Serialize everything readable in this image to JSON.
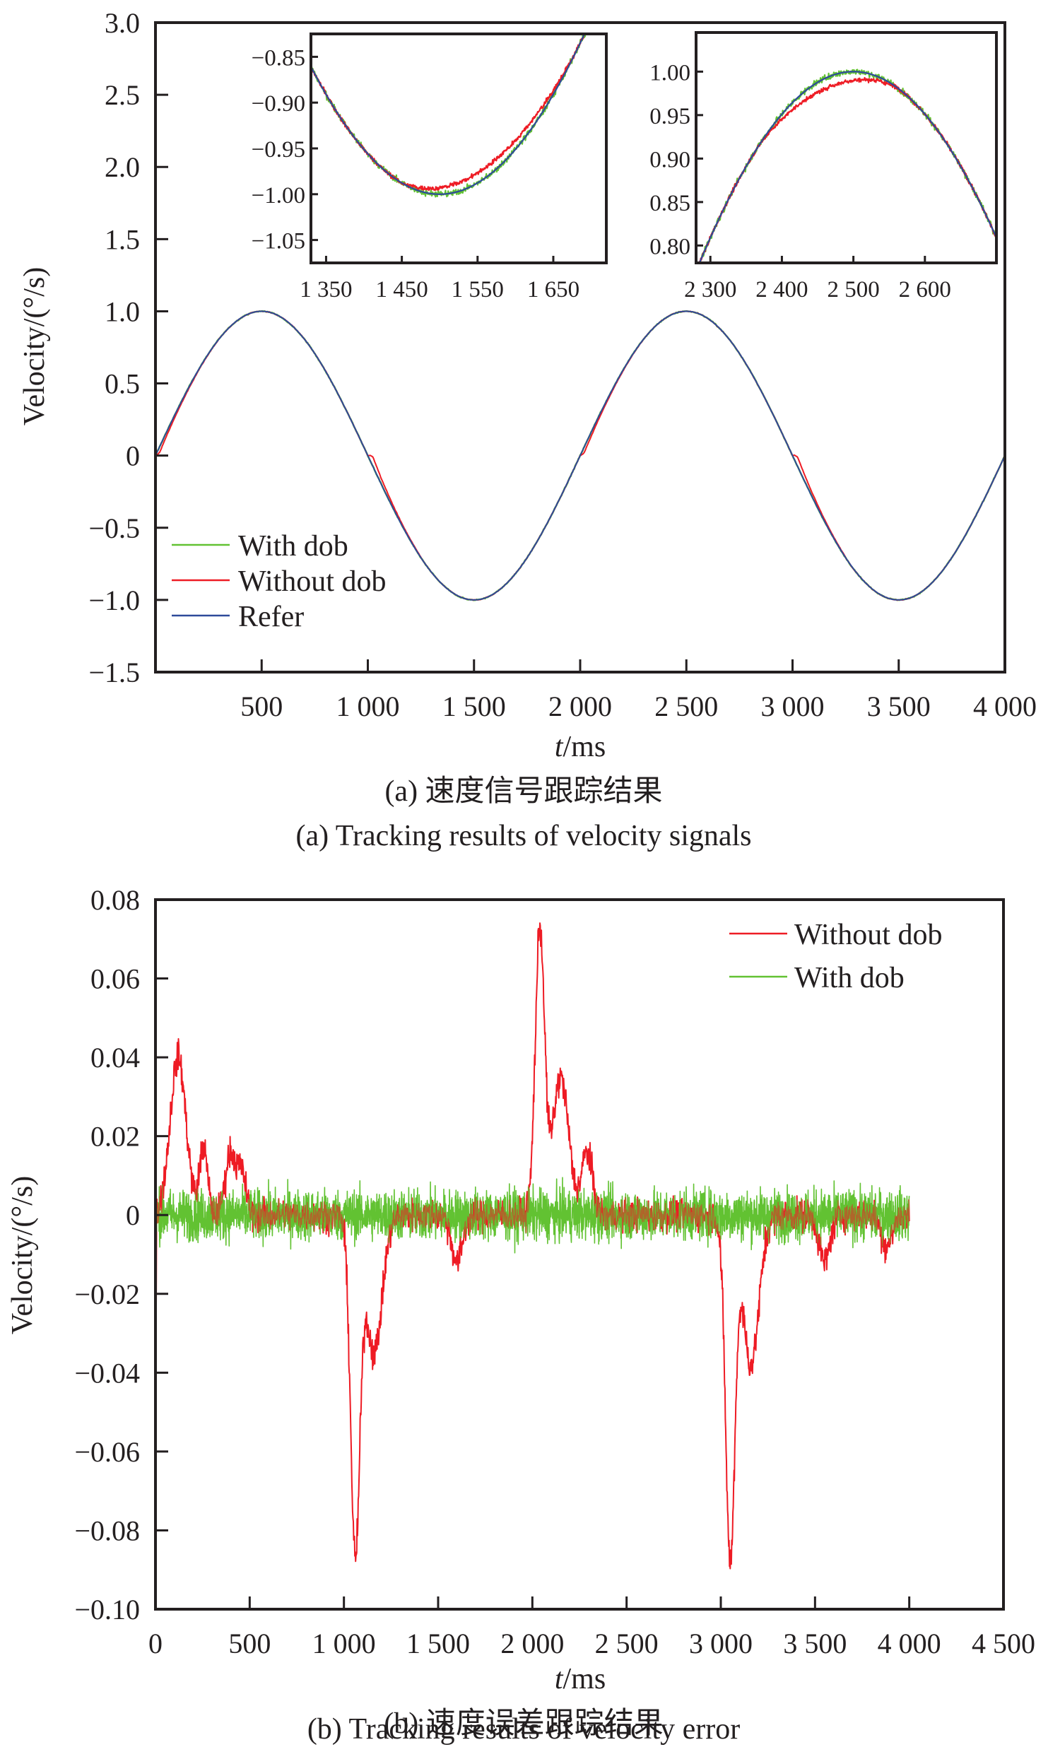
{
  "colors": {
    "with_dob": "#62c232",
    "without_dob": "#ee1c25",
    "refer": "#2e4a9a",
    "axis": "#231f20"
  },
  "chart_data": [
    {
      "id": "a",
      "type": "line",
      "title": "",
      "xlabel_italic": "t",
      "xlabel_rest": "/ms",
      "ylabel": "Velocity/(°/s)",
      "xlim": [
        0,
        4000
      ],
      "ylim": [
        -1.5,
        3.0
      ],
      "grid": false,
      "x_ticks": [
        500,
        1000,
        1500,
        2000,
        2500,
        3000,
        3500,
        4000
      ],
      "x_tick_labels": [
        "500",
        "1 000",
        "1 500",
        "2 000",
        "2 500",
        "3 000",
        "3 500",
        "4 000"
      ],
      "y_ticks": [
        3.0,
        2.5,
        2.0,
        1.5,
        1.0,
        0.5,
        0,
        -0.5,
        -1.0,
        -1.5
      ],
      "y_tick_labels": [
        "3.0",
        "2.5",
        "2.0",
        "1.5",
        "1.0",
        "0.5",
        "0",
        "−0.5",
        "−1.0",
        "−1.5"
      ],
      "legend_position": "bottom-left",
      "series": [
        {
          "name": "With dob",
          "color_key": "with_dob",
          "function": "sin(2*pi*t/2000)",
          "noise_amplitude": 0.006
        },
        {
          "name": "Without dob",
          "color_key": "without_dob",
          "function": "sin(2*pi*t/2000) with lag near zero crossings at 1000 and 3000 ms",
          "noise_amplitude": 0.004
        },
        {
          "name": "Refer",
          "color_key": "refer",
          "function": "sin(2*pi*t/2000)"
        }
      ],
      "legend": [
        "With dob",
        "Without dob",
        "Refer"
      ],
      "caption_cn": "(a) 速度信号跟踪结果",
      "caption_en": "(a) Tracking results of velocity signals",
      "insets": [
        {
          "id": "inset-1",
          "xlim": [
            1330,
            1720
          ],
          "ylim": [
            -1.075,
            -0.825
          ],
          "x_ticks": [
            1350,
            1450,
            1550,
            1650
          ],
          "x_tick_labels": [
            "1 350",
            "1 450",
            "1 550",
            "1 650"
          ],
          "y_ticks": [
            -0.85,
            -0.9,
            -0.95,
            -1.0,
            -1.05
          ],
          "y_tick_labels": [
            "−0.85",
            "−0.90",
            "−0.95",
            "−1.00",
            "−1.05"
          ]
        },
        {
          "id": "inset-2",
          "xlim": [
            2280,
            2700
          ],
          "ylim": [
            0.78,
            1.045
          ],
          "x_ticks": [
            2300,
            2400,
            2500,
            2600
          ],
          "x_tick_labels": [
            "2 300",
            "2 400",
            "2 500",
            "2 600"
          ],
          "y_ticks": [
            1.0,
            0.95,
            0.9,
            0.85,
            0.8
          ],
          "y_tick_labels": [
            "1.00",
            "0.95",
            "0.90",
            "0.85",
            "0.80"
          ]
        }
      ]
    },
    {
      "id": "b",
      "type": "line",
      "title": "",
      "xlabel_italic": "t",
      "xlabel_rest": "/ms",
      "ylabel": "Velocity/(°/s)",
      "xlim": [
        0,
        4500
      ],
      "ylim": [
        -0.1,
        0.08
      ],
      "grid": false,
      "x_ticks": [
        0,
        500,
        1000,
        1500,
        2000,
        2500,
        3000,
        3500,
        4000,
        4500
      ],
      "x_tick_labels": [
        "0",
        "500",
        "1 000",
        "1 500",
        "2 000",
        "2 500",
        "3 000",
        "3 500",
        "4 000",
        "4 500"
      ],
      "y_ticks": [
        0.08,
        0.06,
        0.04,
        0.02,
        0,
        -0.02,
        -0.04,
        -0.06,
        -0.08,
        -0.1
      ],
      "y_tick_labels": [
        "0.08",
        "0.06",
        "0.04",
        "0.02",
        "0",
        "−0.02",
        "−0.04",
        "−0.06",
        "−0.08",
        "−0.10"
      ],
      "legend_position": "top-right",
      "legend": [
        "Without dob",
        "With dob"
      ],
      "series": [
        {
          "name": "Without dob",
          "color_key": "without_dob",
          "features": [
            {
              "t": 110,
              "peak": 0.05
            },
            {
              "t": 250,
              "peak": 0.027
            },
            {
              "t": 400,
              "peak": 0.027
            },
            {
              "t": 1040,
              "peak": -0.092
            },
            {
              "t": 1150,
              "peak": -0.045
            },
            {
              "t": 2030,
              "peak": 0.08
            },
            {
              "t": 2150,
              "peak": 0.045
            },
            {
              "t": 2240,
              "peak": 0.027
            },
            {
              "t": 3040,
              "peak": -0.094
            },
            {
              "t": 3150,
              "peak": -0.047
            }
          ],
          "noise_amplitude": 0.008
        },
        {
          "name": "With dob",
          "color_key": "with_dob",
          "mean": 0,
          "noise_amplitude": 0.011,
          "peak_range": [
            -0.022,
            0.02
          ]
        }
      ],
      "caption_cn": "(b) 速度误差跟踪结果",
      "caption_en": "(b) Tracking results of velocity error"
    }
  ]
}
